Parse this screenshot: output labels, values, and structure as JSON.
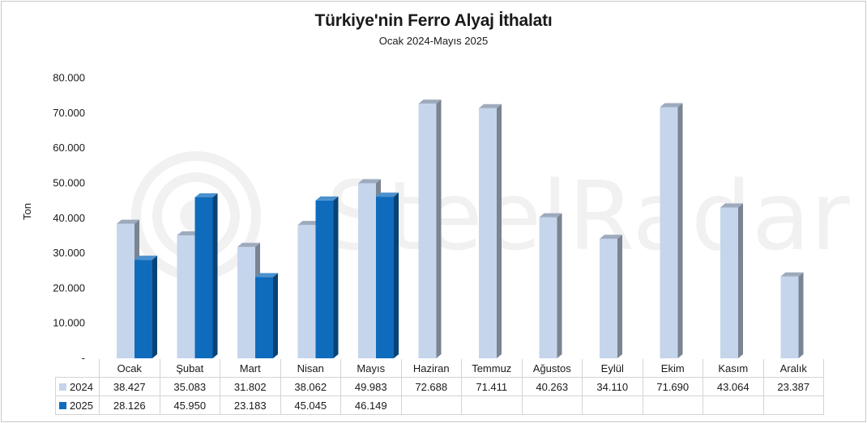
{
  "chart_data": {
    "type": "bar",
    "title": "Türkiye'nin Ferro Alyaj İthalatı",
    "subtitle": "Ocak 2024-Mayıs 2025",
    "ylabel": "Ton",
    "xlabel": "",
    "ylim": [
      0,
      80000
    ],
    "yticks": [
      "-",
      "10.000",
      "20.000",
      "30.000",
      "40.000",
      "50.000",
      "60.000",
      "70.000",
      "80.000"
    ],
    "categories": [
      "Ocak",
      "Şubat",
      "Mart",
      "Nisan",
      "Mayıs",
      "Haziran",
      "Temmuz",
      "Ağustos",
      "Eylül",
      "Ekim",
      "Kasım",
      "Aralık"
    ],
    "series": [
      {
        "name": "2024",
        "color": "#c5d5ec",
        "values": [
          38427,
          35083,
          31802,
          38062,
          49983,
          72688,
          71411,
          40263,
          34110,
          71690,
          43064,
          23387
        ],
        "labels": [
          "38.427",
          "35.083",
          "31.802",
          "38.062",
          "49.983",
          "72.688",
          "71.411",
          "40.263",
          "34.110",
          "71.690",
          "43.064",
          "23.387"
        ]
      },
      {
        "name": "2025",
        "color": "#0f6cbd",
        "values": [
          28126,
          45950,
          23183,
          45045,
          46149,
          null,
          null,
          null,
          null,
          null,
          null,
          null
        ],
        "labels": [
          "28.126",
          "45.950",
          "23.183",
          "45.045",
          "46.149",
          "",
          "",
          "",
          "",
          "",
          "",
          ""
        ]
      }
    ],
    "grid": false,
    "legend": "data-table-bottom"
  },
  "watermark": {
    "text": "SteelRadar",
    "logo": "steelradar-logo-icon"
  }
}
